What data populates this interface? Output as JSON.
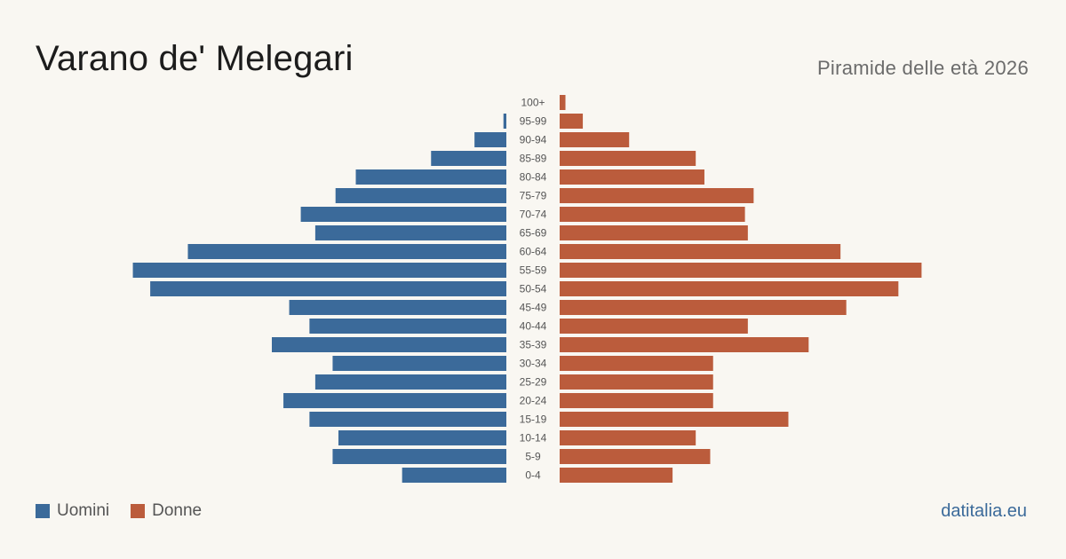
{
  "header": {
    "title": "Varano de' Melegari",
    "subtitle": "Piramide delle età 2026"
  },
  "legend": {
    "men_label": "Uomini",
    "women_label": "Donne"
  },
  "footer": {
    "source": "datitalia.eu"
  },
  "colors": {
    "men": "#3b6a9a",
    "women": "#bb5c3c",
    "background": "#f9f7f2",
    "tick_text": "#555555"
  },
  "chart_data": {
    "type": "bar",
    "orientation": "horizontal-pyramid",
    "categories": [
      "100+",
      "95-99",
      "90-94",
      "85-89",
      "80-84",
      "75-79",
      "70-74",
      "65-69",
      "60-64",
      "55-59",
      "50-54",
      "45-49",
      "40-44",
      "35-39",
      "30-34",
      "25-29",
      "20-24",
      "15-19",
      "10-14",
      "5-9",
      "0-4"
    ],
    "series": [
      {
        "name": "Uomini",
        "values": [
          0,
          1,
          11,
          26,
          52,
          59,
          71,
          66,
          110,
          129,
          123,
          75,
          68,
          81,
          60,
          66,
          77,
          68,
          58,
          60,
          36
        ]
      },
      {
        "name": "Donne",
        "values": [
          2,
          8,
          24,
          47,
          50,
          67,
          64,
          65,
          97,
          125,
          117,
          99,
          65,
          86,
          53,
          53,
          53,
          79,
          47,
          52,
          39
        ]
      }
    ],
    "xlim": [
      0,
      135
    ]
  }
}
